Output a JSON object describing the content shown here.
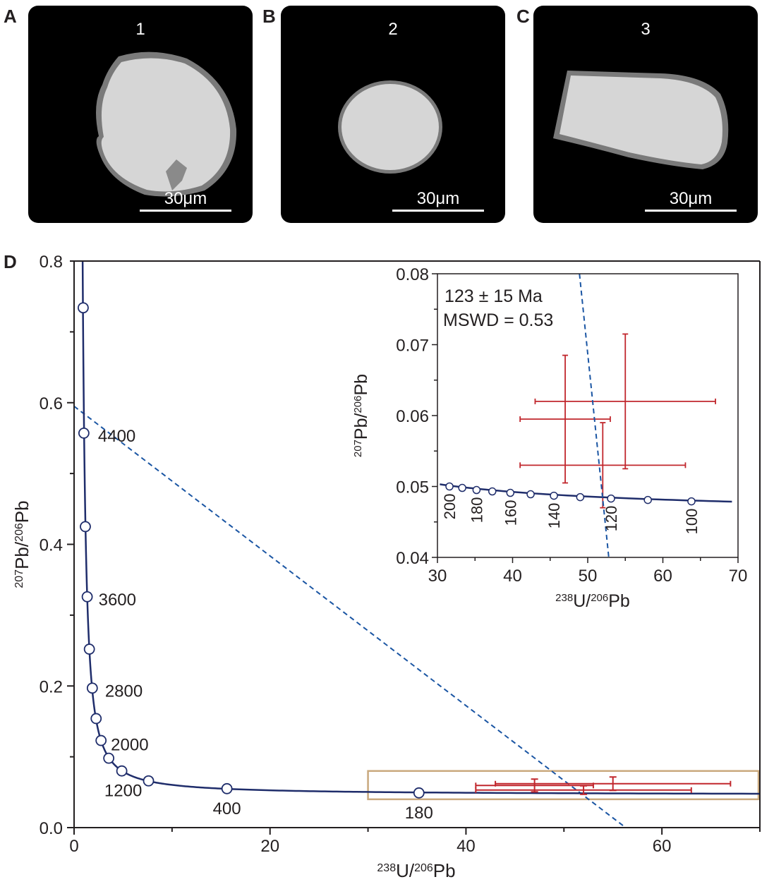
{
  "panels": [
    {
      "letter": "A",
      "number": "1",
      "scale": "30μm"
    },
    {
      "letter": "B",
      "number": "2",
      "scale": "30μm"
    },
    {
      "letter": "C",
      "number": "3",
      "scale": "30μm"
    },
    {
      "letter": "D"
    }
  ],
  "colors": {
    "concordia": "#1f2d6b",
    "discordia": "#1a55a3",
    "data": "#c1272d",
    "zoom_box": "#c9a97e",
    "grain": "#d6d6d6"
  },
  "chart_data": [
    {
      "type": "line",
      "panel": "D",
      "xlabel": {
        "pre": "238",
        "mid": "U/",
        "sup": "206",
        "post": "Pb"
      },
      "ylabel": {
        "pre": "207",
        "mid": "Pb/",
        "sup": "206",
        "post": "Pb"
      },
      "xlim": [
        0,
        70
      ],
      "ylim": [
        0,
        0.8
      ],
      "xticks": [
        0,
        20,
        40,
        60
      ],
      "yticks": [
        0.0,
        0.2,
        0.4,
        0.6,
        0.8
      ],
      "ytick_labels": [
        "0.0",
        "0.2",
        "0.4",
        "0.6",
        "0.8"
      ],
      "concordia_points": [
        {
          "age": 4600,
          "x": 0.93,
          "y": 0.734,
          "label": ""
        },
        {
          "age": 4400,
          "x": 1.0,
          "y": 0.557,
          "label": "4400"
        },
        {
          "age": 4000,
          "x": 1.15,
          "y": 0.425,
          "label": ""
        },
        {
          "age": 3600,
          "x": 1.34,
          "y": 0.326,
          "label": "3600"
        },
        {
          "age": 3200,
          "x": 1.56,
          "y": 0.252,
          "label": ""
        },
        {
          "age": 2800,
          "x": 1.86,
          "y": 0.197,
          "label": "2800"
        },
        {
          "age": 2400,
          "x": 2.25,
          "y": 0.154,
          "label": ""
        },
        {
          "age": 2000,
          "x": 2.75,
          "y": 0.123,
          "label": "2000"
        },
        {
          "age": 1600,
          "x": 3.54,
          "y": 0.098,
          "label": ""
        },
        {
          "age": 1200,
          "x": 4.87,
          "y": 0.08,
          "label": "1200"
        },
        {
          "age": 800,
          "x": 7.6,
          "y": 0.066,
          "label": ""
        },
        {
          "age": 400,
          "x": 15.6,
          "y": 0.055,
          "label": "400"
        },
        {
          "age": 180,
          "x": 35.2,
          "y": 0.049,
          "label": "180"
        }
      ],
      "discordia": {
        "x": [
          0,
          56.3
        ],
        "y": [
          0.595,
          0.0
        ]
      },
      "zoom_box": {
        "x": [
          30,
          70
        ],
        "y": [
          0.04,
          0.08
        ]
      },
      "data_points": [
        {
          "x": 47.0,
          "xerr": 6.0,
          "y": 0.0595,
          "yerr": 0.009
        },
        {
          "x": 55.0,
          "xerr": 12.0,
          "y": 0.062,
          "yerr": 0.0095
        },
        {
          "x": 52.0,
          "xerr": 11.0,
          "y": 0.053,
          "yerr": 0.006
        }
      ]
    },
    {
      "type": "line",
      "panel": "D inset",
      "annotation": [
        "123 ± 15 Ma",
        "MSWD = 0.53"
      ],
      "xlabel": {
        "pre": "238",
        "mid": "U/",
        "sup": "206",
        "post": "Pb"
      },
      "ylabel": {
        "pre": "207",
        "mid": "Pb/",
        "sup": "206",
        "post": "Pb"
      },
      "xlim": [
        30,
        70
      ],
      "ylim": [
        0.04,
        0.08
      ],
      "xticks": [
        30,
        40,
        50,
        60,
        70
      ],
      "yticks": [
        0.04,
        0.05,
        0.06,
        0.07,
        0.08
      ],
      "ytick_labels": [
        "0.04",
        "0.05",
        "0.06",
        "0.07",
        "0.08"
      ],
      "concordia_points": [
        {
          "age": 200,
          "x": 31.6,
          "y": 0.05,
          "label": "200"
        },
        {
          "age": 190,
          "x": 33.3,
          "y": 0.0498,
          "label": ""
        },
        {
          "age": 180,
          "x": 35.2,
          "y": 0.0495,
          "label": "180"
        },
        {
          "age": 170,
          "x": 37.3,
          "y": 0.0493,
          "label": ""
        },
        {
          "age": 160,
          "x": 39.7,
          "y": 0.0491,
          "label": "160"
        },
        {
          "age": 150,
          "x": 42.4,
          "y": 0.0489,
          "label": ""
        },
        {
          "age": 140,
          "x": 45.5,
          "y": 0.0487,
          "label": "140"
        },
        {
          "age": 130,
          "x": 49.0,
          "y": 0.0485,
          "label": ""
        },
        {
          "age": 120,
          "x": 53.1,
          "y": 0.0483,
          "label": "120"
        },
        {
          "age": 110,
          "x": 58.0,
          "y": 0.0481,
          "label": ""
        },
        {
          "age": 100,
          "x": 63.8,
          "y": 0.0479,
          "label": "100"
        }
      ],
      "discordia": {
        "x": [
          48.9,
          52.8
        ],
        "y": [
          0.08,
          0.04
        ]
      },
      "data_points": [
        {
          "x": 47.0,
          "xerr": 6.0,
          "y": 0.0595,
          "yerr": 0.009
        },
        {
          "x": 55.0,
          "xerr": 12.0,
          "y": 0.062,
          "yerr": 0.0095
        },
        {
          "x": 52.0,
          "xerr": 11.0,
          "y": 0.053,
          "yerr": 0.006
        }
      ]
    }
  ]
}
